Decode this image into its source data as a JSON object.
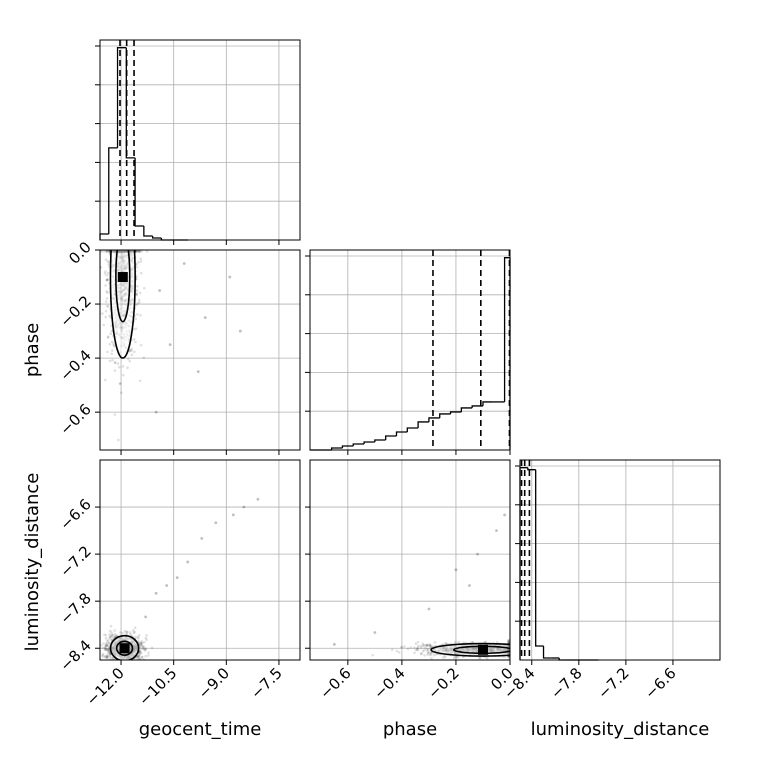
{
  "chart_data": {
    "type": "corner",
    "parameters": [
      "geocent_time",
      "phase",
      "luminosity_distance"
    ],
    "ticks": {
      "geocent_time": {
        "values": [
          -12.0,
          -10.5,
          -9.0,
          -7.5
        ],
        "labels": [
          "−12.0",
          "−10.5",
          "−9.0",
          "−7.5"
        ],
        "range": [
          -12.6,
          -6.9
        ]
      },
      "phase": {
        "values": [
          -0.6,
          -0.4,
          -0.2,
          0.0
        ],
        "labels": [
          "−0.6",
          "−0.4",
          "−0.2",
          "0.0"
        ],
        "range": [
          -0.74,
          0.0
        ]
      },
      "luminosity_distance": {
        "values": [
          -8.4,
          -7.8,
          -7.2,
          -6.6
        ],
        "labels": [
          "−8.4",
          "−7.8",
          "−7.2",
          "−6.6"
        ],
        "range": [
          -8.55,
          -6.0
        ]
      }
    },
    "grid": true,
    "histograms": {
      "geocent_time": {
        "bin_edges": [
          -12.6,
          -12.35,
          -12.1,
          -11.85,
          -11.6,
          -11.35,
          -11.1,
          -10.85,
          -10.6,
          -10.35,
          -10.1
        ],
        "counts": [
          3,
          46,
          96,
          41,
          7,
          2,
          1,
          0,
          0,
          0
        ],
        "quantiles": [
          -12.03,
          -11.84,
          -11.63
        ]
      },
      "phase": {
        "bin_edges": [
          -0.74,
          -0.7,
          -0.66,
          -0.62,
          -0.58,
          -0.54,
          -0.5,
          -0.46,
          -0.42,
          -0.38,
          -0.34,
          -0.3,
          -0.26,
          -0.22,
          -0.18,
          -0.14,
          -0.1,
          -0.06,
          -0.02,
          0.0
        ],
        "counts": [
          0,
          0,
          1,
          2,
          3,
          4,
          5,
          7,
          9,
          11,
          14,
          16,
          18,
          19,
          21,
          22,
          24,
          24,
          96
        ],
        "quantiles": [
          -0.285,
          -0.108,
          -0.002
        ]
      },
      "luminosity_distance": {
        "bin_edges": [
          -8.55,
          -8.45,
          -8.35,
          -8.25,
          -8.15,
          -8.05,
          -7.95,
          -7.85,
          -7.75,
          -7.65,
          -7.55
        ],
        "counts": [
          96,
          95,
          7,
          1,
          1,
          0,
          0,
          0,
          0,
          0
        ],
        "quantiles": [
          -8.53,
          -8.49,
          -8.43
        ]
      }
    },
    "scatter_panels": [
      {
        "x": "geocent_time",
        "y": "phase",
        "center": [
          -11.95,
          -0.1
        ],
        "sigma": [
          0.22,
          0.15
        ],
        "sparse_points": [
          [
            -10.2,
            -0.05
          ],
          [
            -9.6,
            -0.25
          ],
          [
            -8.9,
            -0.1
          ],
          [
            -10.6,
            -0.35
          ],
          [
            -11.0,
            -0.6
          ],
          [
            -9.8,
            -0.45
          ],
          [
            -10.9,
            -0.15
          ],
          [
            -8.6,
            -0.3
          ]
        ]
      },
      {
        "x": "geocent_time",
        "y": "luminosity_distance",
        "center": [
          -11.9,
          -8.4
        ],
        "sigma": [
          0.25,
          0.08
        ],
        "sparse_points": [
          [
            -10.4,
            -7.5
          ],
          [
            -10.1,
            -7.3
          ],
          [
            -9.7,
            -7.0
          ],
          [
            -9.3,
            -6.8
          ],
          [
            -8.8,
            -6.7
          ],
          [
            -8.1,
            -6.5
          ],
          [
            -11.3,
            -8.0
          ],
          [
            -11.0,
            -7.7
          ],
          [
            -10.7,
            -7.6
          ],
          [
            -8.5,
            -6.6
          ]
        ]
      },
      {
        "x": "phase",
        "y": "luminosity_distance",
        "center": [
          -0.1,
          -8.42
        ],
        "sigma": [
          0.12,
          0.04
        ],
        "sparse_points": [
          [
            -0.05,
            -6.9
          ],
          [
            -0.12,
            -7.2
          ],
          [
            -0.2,
            -7.4
          ],
          [
            -0.02,
            -6.7
          ],
          [
            -0.15,
            -7.6
          ],
          [
            -0.3,
            -7.9
          ],
          [
            -0.5,
            -8.2
          ],
          [
            -0.65,
            -8.35
          ]
        ]
      }
    ]
  }
}
